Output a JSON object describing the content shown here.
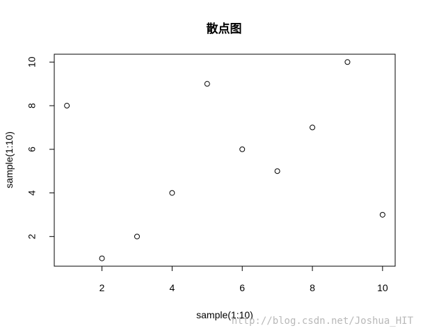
{
  "chart_data": {
    "type": "scatter",
    "title": "散点图",
    "xlabel": "sample(1:10)",
    "ylabel": "sample(1:10)",
    "xlim": [
      0.64,
      10.36
    ],
    "ylim": [
      0.64,
      10.36
    ],
    "xticks": [
      2,
      4,
      6,
      8,
      10
    ],
    "yticks": [
      2,
      4,
      6,
      8,
      10
    ],
    "grid": false,
    "points": [
      {
        "x": 1,
        "y": 8
      },
      {
        "x": 2,
        "y": 1
      },
      {
        "x": 3,
        "y": 2
      },
      {
        "x": 4,
        "y": 4
      },
      {
        "x": 5,
        "y": 9
      },
      {
        "x": 6,
        "y": 6
      },
      {
        "x": 7,
        "y": 5
      },
      {
        "x": 8,
        "y": 7
      },
      {
        "x": 9,
        "y": 10
      },
      {
        "x": 10,
        "y": 3
      }
    ],
    "marker": "open-circle",
    "marker_color": "#000000"
  },
  "watermark": "http://blog.csdn.net/Joshua_HIT"
}
